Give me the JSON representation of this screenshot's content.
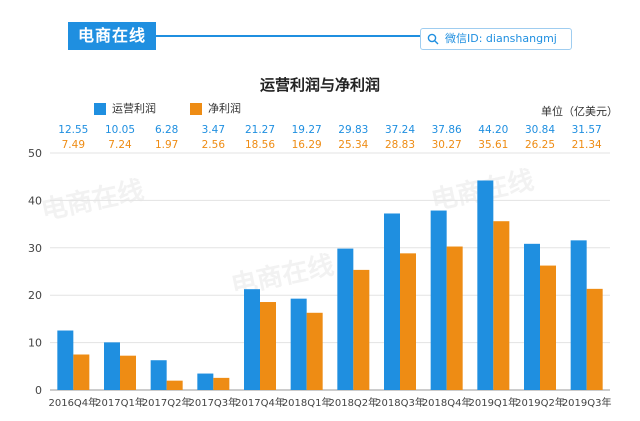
{
  "header": {
    "logo_text": "电商在线",
    "wechat_label": "微信ID: dianshangmj"
  },
  "watermark_text": "电商在线",
  "colors": {
    "operating": "#1f8fe0",
    "net": "#ee8c14",
    "accent": "#1f8fe0"
  },
  "chart_data": {
    "type": "bar",
    "title": "运营利润与净利润",
    "unit_label": "单位（亿美元）",
    "categories": [
      "2016Q4年",
      "2017Q1年",
      "2017Q2年",
      "2017Q3年",
      "2017Q4年",
      "2018Q1年",
      "2018Q2年",
      "2018Q3年",
      "2018Q4年",
      "2019Q1年",
      "2019Q2年",
      "2019Q3年"
    ],
    "series": [
      {
        "name": "运营利润",
        "values": [
          12.55,
          10.05,
          6.28,
          3.47,
          21.27,
          19.27,
          29.83,
          37.24,
          37.86,
          44.2,
          30.84,
          31.57
        ],
        "labels": [
          "12.55",
          "10.05",
          "6.28",
          "3.47",
          "21.27",
          "19.27",
          "29.83",
          "37.24",
          "37.86",
          "44.20",
          "30.84",
          "31.57"
        ]
      },
      {
        "name": "净利润",
        "values": [
          7.49,
          7.24,
          1.97,
          2.56,
          18.56,
          16.29,
          25.34,
          28.83,
          30.27,
          35.61,
          26.25,
          21.34
        ],
        "labels": [
          "7.49",
          "7.24",
          "1.97",
          "2.56",
          "18.56",
          "16.29",
          "25.34",
          "28.83",
          "30.27",
          "35.61",
          "26.25",
          "21.34"
        ]
      }
    ],
    "xlabel": "",
    "ylabel": "",
    "ylim": [
      0,
      50
    ],
    "yticks": [
      "0",
      "10",
      "20",
      "30",
      "40",
      "50"
    ],
    "grid": true,
    "legend_position": "top-left"
  }
}
